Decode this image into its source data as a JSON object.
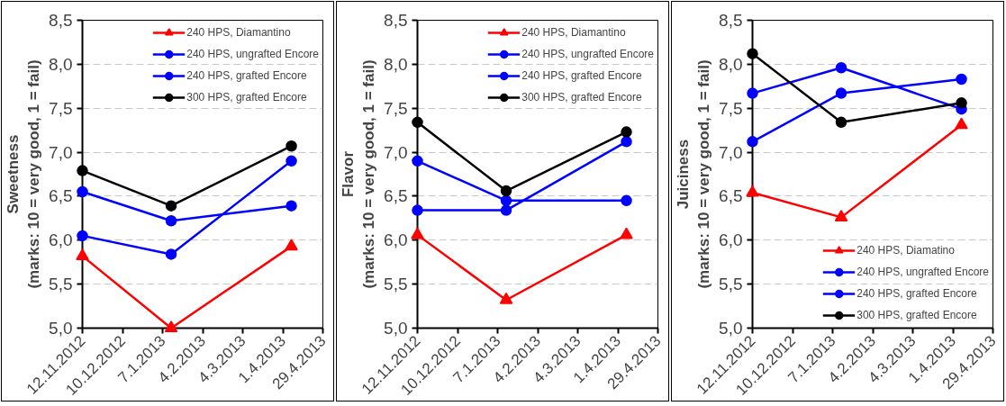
{
  "chart_data": [
    {
      "type": "line",
      "ylabel": "Sweetness\n(marks: 10 = very good, 1 = fail)",
      "x": [
        "2012-11-12",
        "2013-01-13",
        "2013-04-07"
      ],
      "series": [
        {
          "name": "240 HPS, Diamantino",
          "color": "#ff0000",
          "marker": "triangle",
          "values": [
            5.82,
            5.0,
            5.93
          ]
        },
        {
          "name": "240 HPS, ungrafted Encore",
          "color": "#0000ff",
          "marker": "circle",
          "values": [
            6.05,
            5.84,
            6.9
          ]
        },
        {
          "name": "240 HPS, grafted Encore",
          "color": "#0000ff",
          "marker": "circle",
          "values": [
            6.55,
            6.22,
            6.39
          ]
        },
        {
          "name": "300 HPS, grafted Encore",
          "color": "#000000",
          "marker": "circle",
          "values": [
            6.79,
            6.39,
            7.07
          ]
        }
      ],
      "xlim": [
        "2012-11-12",
        "2013-04-29"
      ],
      "xticks": [
        {
          "value": "2012-11-12",
          "label": "12.11.2012"
        },
        {
          "value": "2012-12-10",
          "label": "10.12.2012"
        },
        {
          "value": "2013-01-07",
          "label": "7.1.2013"
        },
        {
          "value": "2013-02-04",
          "label": "4.2.2013"
        },
        {
          "value": "2013-03-04",
          "label": "4.3.2013"
        },
        {
          "value": "2013-04-01",
          "label": "1.4.2013"
        },
        {
          "value": "2013-04-29",
          "label": "29.4.2013"
        }
      ],
      "ylim": [
        5.0,
        8.5
      ],
      "yticks": [
        {
          "value": 5.0,
          "label": "5,0"
        },
        {
          "value": 5.5,
          "label": "5,5"
        },
        {
          "value": 6.0,
          "label": "6,0"
        },
        {
          "value": 6.5,
          "label": "6,5"
        },
        {
          "value": 7.0,
          "label": "7,0"
        },
        {
          "value": 7.5,
          "label": "7,5"
        },
        {
          "value": 8.0,
          "label": "8,0"
        },
        {
          "value": 8.5,
          "label": "8,5"
        }
      ],
      "grid": "y",
      "legend": "top right",
      "line_style": "solid"
    },
    {
      "type": "line",
      "ylabel": "Flavor\n(marks: 10 = very good, 1 = fail)",
      "x": [
        "2012-11-12",
        "2013-01-13",
        "2013-04-07"
      ],
      "series": [
        {
          "name": "240 HPS, Diamantino",
          "color": "#ff0000",
          "marker": "triangle",
          "values": [
            6.06,
            5.32,
            6.06
          ]
        },
        {
          "name": "240 HPS, ungrafted Encore",
          "color": "#0000ff",
          "marker": "circle",
          "values": [
            6.34,
            6.34,
            7.12
          ]
        },
        {
          "name": "240 HPS, grafted Encore",
          "color": "#0000ff",
          "marker": "circle",
          "values": [
            6.9,
            6.45,
            6.45
          ]
        },
        {
          "name": "300 HPS, grafted Encore",
          "color": "#000000",
          "marker": "circle",
          "values": [
            7.34,
            6.56,
            7.23
          ]
        }
      ],
      "xlim": [
        "2012-11-12",
        "2013-04-29"
      ],
      "xticks": [
        {
          "value": "2012-11-12",
          "label": "12.11.2012"
        },
        {
          "value": "2012-12-10",
          "label": "10.12.2012"
        },
        {
          "value": "2013-01-07",
          "label": "7.1.2013"
        },
        {
          "value": "2013-02-04",
          "label": "4.2.2013"
        },
        {
          "value": "2013-03-04",
          "label": "4.3.2013"
        },
        {
          "value": "2013-04-01",
          "label": "1.4.2013"
        },
        {
          "value": "2013-04-29",
          "label": "29.4.2013"
        }
      ],
      "ylim": [
        5.0,
        8.5
      ],
      "yticks": [
        {
          "value": 5.0,
          "label": "5,0"
        },
        {
          "value": 5.5,
          "label": "5,5"
        },
        {
          "value": 6.0,
          "label": "6,0"
        },
        {
          "value": 6.5,
          "label": "6,5"
        },
        {
          "value": 7.0,
          "label": "7,0"
        },
        {
          "value": 7.5,
          "label": "7,5"
        },
        {
          "value": 8.0,
          "label": "8,0"
        },
        {
          "value": 8.5,
          "label": "8,5"
        }
      ],
      "grid": "y",
      "legend": "top right",
      "line_style": "solid"
    },
    {
      "type": "line",
      "ylabel": "Juiciness\n(marks: 10 = very good, 1 = fail)",
      "x": [
        "2012-11-12",
        "2013-01-13",
        "2013-04-07"
      ],
      "series": [
        {
          "name": "240 HPS, Diamatino",
          "color": "#ff0000",
          "marker": "triangle",
          "values": [
            6.54,
            6.26,
            7.31
          ]
        },
        {
          "name": "240 HPS, ungrafted Encore",
          "color": "#0000ff",
          "marker": "circle",
          "values": [
            7.12,
            7.67,
            7.83
          ]
        },
        {
          "name": "240 HPS, grafted Encore",
          "color": "#0000ff",
          "marker": "circle",
          "values": [
            7.67,
            7.96,
            7.49
          ]
        },
        {
          "name": "300 HPS, grafted Encore",
          "color": "#000000",
          "marker": "circle",
          "values": [
            8.12,
            7.34,
            7.56
          ]
        }
      ],
      "xlim": [
        "2012-11-12",
        "2013-04-29"
      ],
      "xticks": [
        {
          "value": "2012-11-12",
          "label": "12.11.2012"
        },
        {
          "value": "2012-12-10",
          "label": "10.12.2012"
        },
        {
          "value": "2013-01-07",
          "label": "7.1.2013"
        },
        {
          "value": "2013-02-04",
          "label": "4.2.2013"
        },
        {
          "value": "2013-03-04",
          "label": "4.3.2013"
        },
        {
          "value": "2013-04-01",
          "label": "1.4.2013"
        },
        {
          "value": "2013-04-29",
          "label": "29.4.2013"
        }
      ],
      "ylim": [
        5.0,
        8.5
      ],
      "yticks": [
        {
          "value": 5.0,
          "label": "5,0"
        },
        {
          "value": 5.5,
          "label": "5,5"
        },
        {
          "value": 6.0,
          "label": "6,0"
        },
        {
          "value": 6.5,
          "label": "6,5"
        },
        {
          "value": 7.0,
          "label": "7,0"
        },
        {
          "value": 7.5,
          "label": "7,5"
        },
        {
          "value": 8.0,
          "label": "8,0"
        },
        {
          "value": 8.5,
          "label": "8,5"
        }
      ],
      "grid": "y",
      "legend": "bottom right",
      "line_style": "solid"
    }
  ]
}
